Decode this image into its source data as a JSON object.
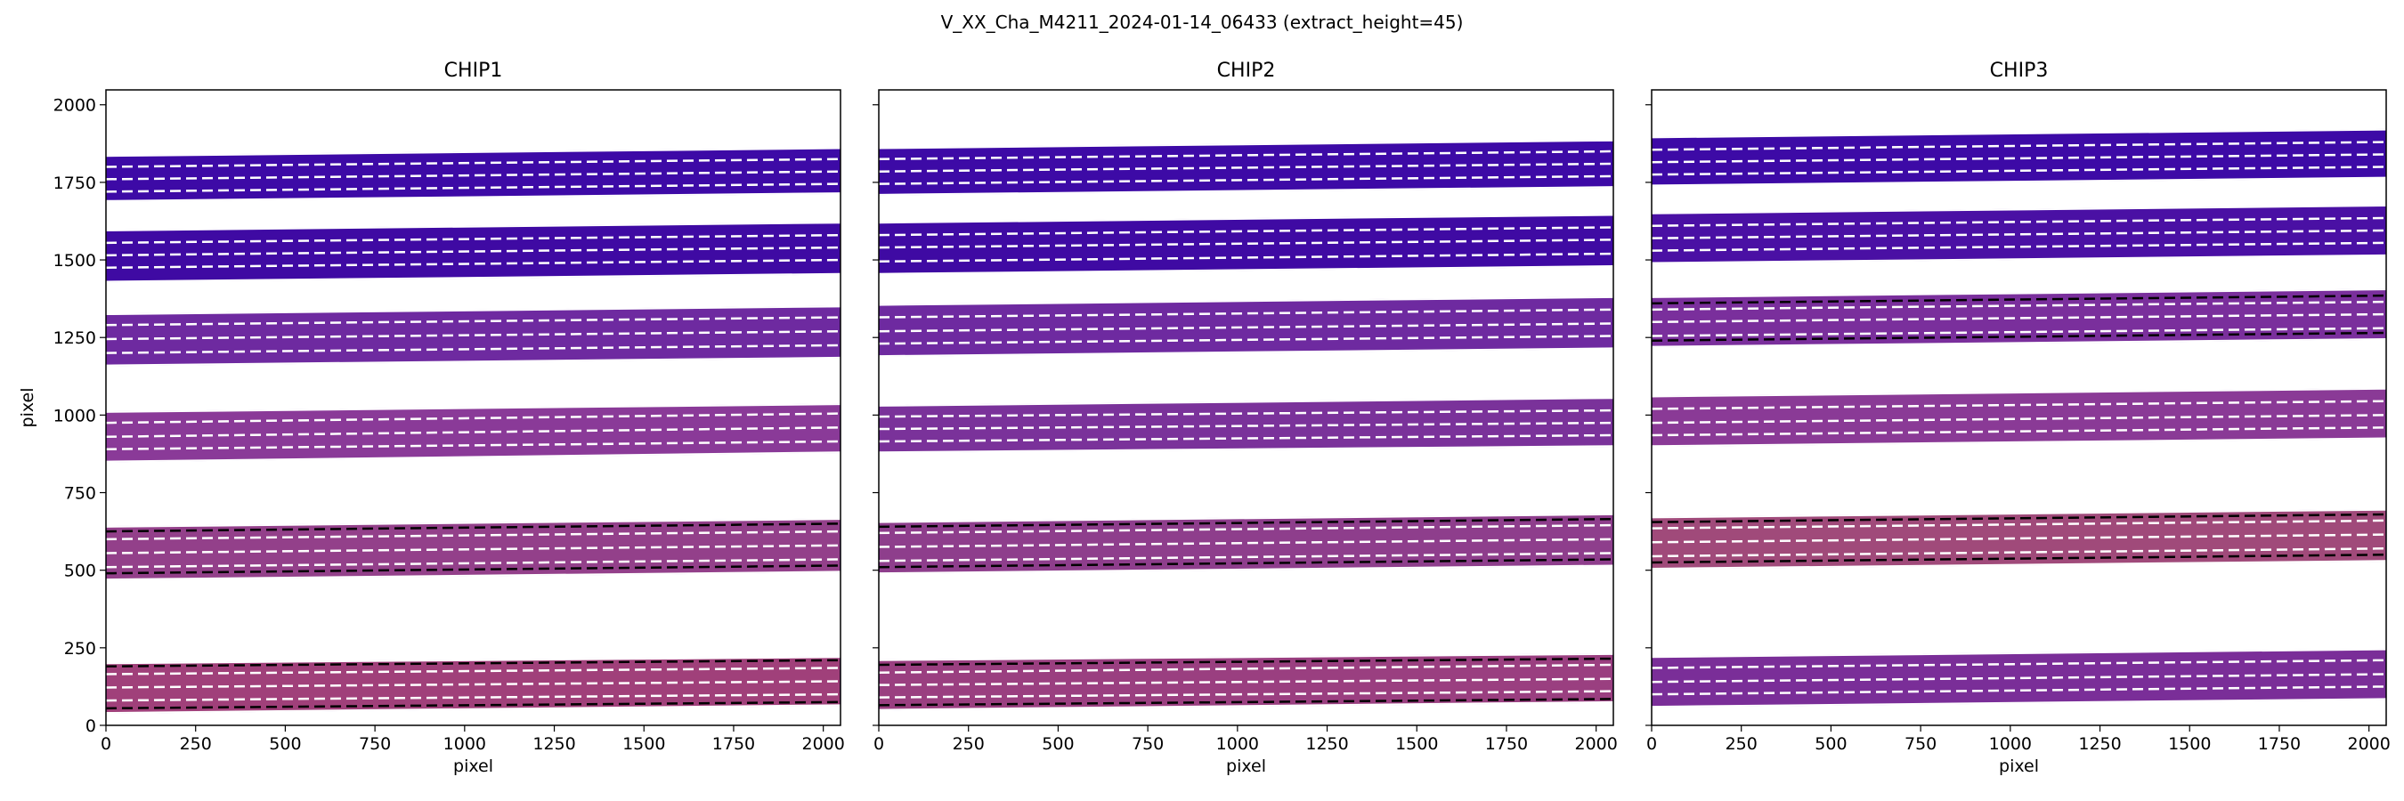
{
  "figure": {
    "suptitle": "V_XX_Cha_M4211_2024-01-14_06433  (extract_height=45)"
  },
  "chart_data": [
    {
      "type": "heatmap",
      "title": "CHIP1",
      "xlabel": "pixel",
      "ylabel": "pixel",
      "xlim": [
        0,
        2048
      ],
      "ylim": [
        0,
        2048
      ],
      "xticks": [
        0,
        250,
        500,
        750,
        1000,
        1250,
        1500,
        1750,
        2000
      ],
      "yticks": [
        0,
        250,
        500,
        750,
        1000,
        1250,
        1500,
        1750,
        2000
      ],
      "orders": [
        {
          "bottom": [
            40,
            65
          ],
          "top": [
            200,
            220
          ],
          "color": "#a0407a",
          "lines": [
            [
              80,
              100
            ],
            [
              122,
              142
            ],
            [
              165,
              185
            ]
          ],
          "lines_black": [
            [
              55,
              75
            ],
            [
              190,
              210
            ]
          ]
        },
        {
          "bottom": [
            470,
            495
          ],
          "top": [
            640,
            665
          ],
          "color": "#93408a",
          "lines": [
            [
              510,
              535
            ],
            [
              555,
              580
            ],
            [
              600,
              625
            ]
          ],
          "lines_black": [
            [
              490,
              515
            ],
            [
              625,
              650
            ]
          ]
        },
        {
          "bottom": [
            850,
            880
          ],
          "top": [
            1010,
            1035
          ],
          "color": "#8a3a98",
          "lines": [
            [
              890,
              915
            ],
            [
              930,
              960
            ],
            [
              975,
              1005
            ]
          ],
          "lines_black": []
        },
        {
          "bottom": [
            1160,
            1185
          ],
          "top": [
            1325,
            1350
          ],
          "color": "#6e2aa0",
          "lines": [
            [
              1200,
              1225
            ],
            [
              1245,
              1270
            ],
            [
              1290,
              1315
            ]
          ],
          "lines_black": []
        },
        {
          "bottom": [
            1430,
            1455
          ],
          "top": [
            1595,
            1620
          ],
          "color": "#3f0aa3",
          "lines": [
            [
              1475,
              1500
            ],
            [
              1515,
              1540
            ],
            [
              1555,
              1580
            ]
          ],
          "lines_black": []
        },
        {
          "bottom": [
            1690,
            1715
          ],
          "top": [
            1835,
            1860
          ],
          "color": "#3d0aa6",
          "lines": [
            [
              1720,
              1745
            ],
            [
              1760,
              1785
            ],
            [
              1800,
              1825
            ]
          ],
          "lines_black": []
        }
      ]
    },
    {
      "type": "heatmap",
      "title": "CHIP2",
      "xlabel": "pixel",
      "ylabel": "",
      "xlim": [
        0,
        2048
      ],
      "ylim": [
        0,
        2048
      ],
      "xticks": [
        0,
        250,
        500,
        750,
        1000,
        1250,
        1500,
        1750,
        2000
      ],
      "yticks": [
        0,
        250,
        500,
        750,
        1000,
        1250,
        1500,
        1750,
        2000
      ],
      "orders": [
        {
          "bottom": [
            50,
            75
          ],
          "top": [
            210,
            230
          ],
          "color": "#9a3f80",
          "lines": [
            [
              90,
              110
            ],
            [
              130,
              150
            ],
            [
              170,
              195
            ]
          ],
          "lines_black": [
            [
              65,
              85
            ],
            [
              195,
              215
            ]
          ]
        },
        {
          "bottom": [
            490,
            515
          ],
          "top": [
            655,
            680
          ],
          "color": "#8e3e8c",
          "lines": [
            [
              530,
              555
            ],
            [
              575,
              600
            ],
            [
              620,
              645
            ]
          ],
          "lines_black": [
            [
              510,
              535
            ],
            [
              640,
              665
            ]
          ]
        },
        {
          "bottom": [
            880,
            900
          ],
          "top": [
            1030,
            1055
          ],
          "color": "#7a329a",
          "lines": [
            [
              915,
              935
            ],
            [
              955,
              975
            ],
            [
              995,
              1015
            ]
          ],
          "lines_black": []
        },
        {
          "bottom": [
            1190,
            1215
          ],
          "top": [
            1355,
            1380
          ],
          "color": "#6e2aa0",
          "lines": [
            [
              1230,
              1255
            ],
            [
              1270,
              1295
            ],
            [
              1315,
              1340
            ]
          ],
          "lines_black": []
        },
        {
          "bottom": [
            1455,
            1480
          ],
          "top": [
            1620,
            1645
          ],
          "color": "#3f0aa3",
          "lines": [
            [
              1495,
              1520
            ],
            [
              1540,
              1565
            ],
            [
              1580,
              1605
            ]
          ],
          "lines_black": []
        },
        {
          "bottom": [
            1710,
            1735
          ],
          "top": [
            1860,
            1885
          ],
          "color": "#3d0aa6",
          "lines": [
            [
              1745,
              1770
            ],
            [
              1785,
              1810
            ],
            [
              1825,
              1850
            ]
          ],
          "lines_black": []
        }
      ]
    },
    {
      "type": "heatmap",
      "title": "CHIP3",
      "xlabel": "pixel",
      "ylabel": "",
      "xlim": [
        0,
        2048
      ],
      "ylim": [
        0,
        2048
      ],
      "xticks": [
        0,
        250,
        500,
        750,
        1000,
        1250,
        1500,
        1750,
        2000
      ],
      "yticks": [
        0,
        250,
        500,
        750,
        1000,
        1250,
        1500,
        1750,
        2000
      ],
      "orders": [
        {
          "bottom": [
            60,
            85
          ],
          "top": [
            220,
            245
          ],
          "color": "#7a2e98",
          "lines": [
            [
              100,
              125
            ],
            [
              140,
              165
            ],
            [
              185,
              210
            ]
          ],
          "lines_black": []
        },
        {
          "bottom": [
            505,
            530
          ],
          "top": [
            670,
            695
          ],
          "color": "#a04a7a",
          "lines": [
            [
              545,
              570
            ],
            [
              590,
              615
            ],
            [
              635,
              660
            ]
          ],
          "lines_black": [
            [
              525,
              550
            ],
            [
              655,
              680
            ]
          ]
        },
        {
          "bottom": [
            900,
            925
          ],
          "top": [
            1060,
            1085
          ],
          "color": "#8a3a96",
          "lines": [
            [
              935,
              960
            ],
            [
              975,
              1000
            ],
            [
              1020,
              1045
            ]
          ],
          "lines_black": []
        },
        {
          "bottom": [
            1220,
            1245
          ],
          "top": [
            1380,
            1405
          ],
          "color": "#7a2f9c",
          "lines": [
            [
              1255,
              1280
            ],
            [
              1300,
              1325
            ],
            [
              1340,
              1365
            ]
          ],
          "lines_black": [
            [
              1240,
              1265
            ],
            [
              1360,
              1385
            ]
          ]
        },
        {
          "bottom": [
            1490,
            1515
          ],
          "top": [
            1650,
            1675
          ],
          "color": "#4a10a4",
          "lines": [
            [
              1530,
              1555
            ],
            [
              1570,
              1595
            ],
            [
              1610,
              1635
            ]
          ],
          "lines_black": []
        },
        {
          "bottom": [
            1740,
            1765
          ],
          "top": [
            1895,
            1920
          ],
          "color": "#3d0aa6",
          "lines": [
            [
              1775,
              1800
            ],
            [
              1815,
              1840
            ],
            [
              1855,
              1880
            ]
          ],
          "lines_black": []
        }
      ]
    }
  ]
}
